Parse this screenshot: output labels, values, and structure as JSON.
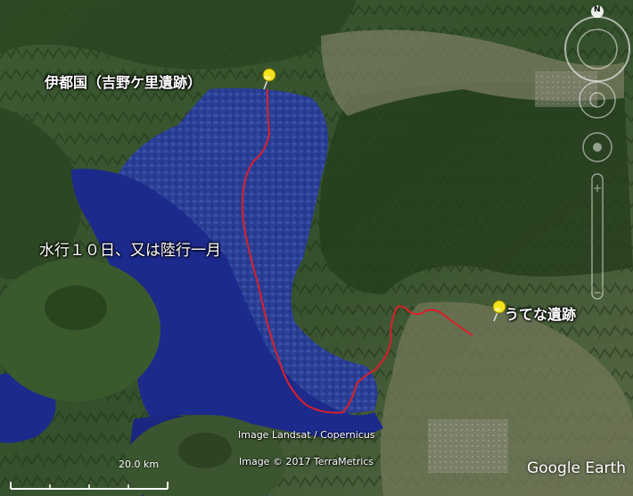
{
  "map": {
    "places": [
      {
        "id": "yoshinogari",
        "label": "伊都国（吉野ケ里遺跡）"
      },
      {
        "id": "utena",
        "label": "うてな遺跡"
      }
    ],
    "route_label": "水行１０日、又は陸行一月",
    "colors": {
      "route": "#d9202a",
      "sea": "#1c2a8c",
      "pin": "#f2e21a"
    }
  },
  "controls": {
    "compass_letter": "N"
  },
  "scale": {
    "label": "20.0 km"
  },
  "attribution": {
    "line1": "Image Landsat / Copernicus",
    "line2": "Image © 2017 TerraMetrics",
    "brand": "Google Earth"
  }
}
